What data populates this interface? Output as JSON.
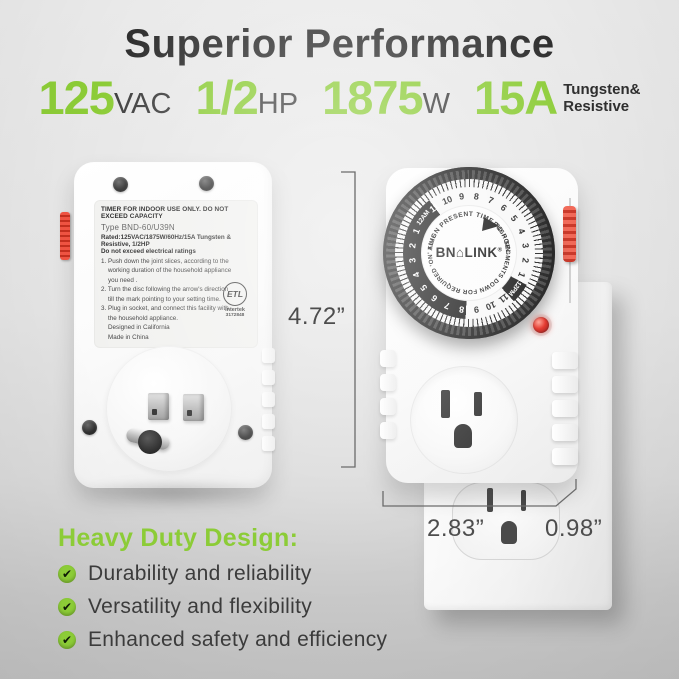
{
  "header": {
    "title": "Superior Performance"
  },
  "specs": [
    {
      "value": "125",
      "unit": "VAC"
    },
    {
      "value": "1/2",
      "unit": "HP"
    },
    {
      "value": "1875",
      "unit": "W"
    },
    {
      "value": "15A",
      "unit_lines": [
        "Tungsten&",
        "Resistive"
      ]
    }
  ],
  "back_panel": {
    "warning": "TIMER FOR INDOOR USE ONLY. DO NOT EXCEED CAPACITY",
    "type": "Type BND-60/U39N",
    "rated": "Rated:125VAC/1875W/60Hz/15A Tungsten & Resistive, 1/2HP",
    "note": "Do not exceed electrical ratings",
    "steps": [
      "1. Push down the joint slices, according to the working duration of the household appliance you need .",
      "2. Turn the disc following the arrow's direction till the mark pointing to your setting time.",
      "3. Plug in socket, and connect this facility with the household appliance."
    ],
    "origin": [
      "Designed in California",
      "Made in China"
    ],
    "etl": {
      "mark": "ETL",
      "brand": "Intertek",
      "number": "3172848"
    }
  },
  "dial": {
    "brand_left": "BN",
    "brand_right": "LINK",
    "reg": "®",
    "house_glyph": "⌂",
    "arc_top": "ALIGN PRESENT TIME TO POINTER",
    "arc_bottom": "PUSH SEGMENTS DOWN FOR REQUIRED 'ON' TIME",
    "hours": [
      "12AM",
      "11",
      "10",
      "9",
      "8",
      "7",
      "6",
      "5",
      "4",
      "3",
      "2",
      "1",
      "12PM",
      "11",
      "10",
      "9",
      "8",
      "7",
      "6",
      "5",
      "4",
      "3",
      "2",
      "1"
    ]
  },
  "dimensions": {
    "height": "4.72”",
    "width": "2.83”",
    "depth": "0.98”"
  },
  "features": {
    "heading": "Heavy Duty Design:",
    "check_glyph": "✔",
    "items": [
      "Durability and reliability",
      "Versatility and flexibility",
      "Enhanced safety and efficiency"
    ]
  },
  "colors": {
    "accent_green": "#8CCC37",
    "title_gray": "#2e2e2e",
    "switch_red": "#d6321f",
    "led_red": "#e2271c"
  }
}
